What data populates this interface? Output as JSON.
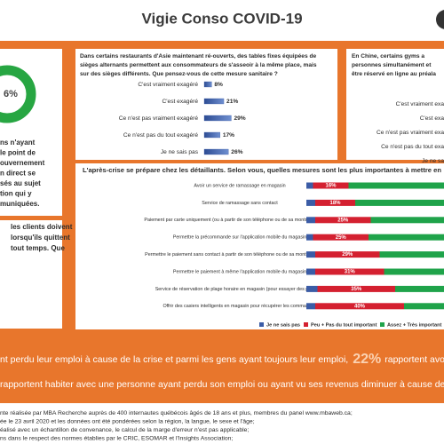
{
  "title": "Vigie Conso COVID-19",
  "left_panel": {
    "donut_label": "6%",
    "lines": [
      "ns n'ayant",
      "le point de",
      "ouvernement",
      "n direct se",
      "sés au sujet",
      "tion qui y",
      "muniquées."
    ]
  },
  "left_panel_2": {
    "lines": [
      "les clients doivent",
      "lorsqu'ils quittent",
      "tout temps. Que"
    ]
  },
  "middle_chart": {
    "type": "bar",
    "question_lines": [
      "Dans certains restaurants d'Asie maintenant ré-ouverts, des tables fixes équipées de",
      "sièges alternants permettent aux consommateurs de s'asseoir à la même place, mais",
      "sur des sièges différents. Que pensez-vous de cette mesure sanitaire ?"
    ],
    "categories": [
      "C'est vraiment exagéré",
      "C'est exagéré",
      "Ce n'est pas vraiment exagéré",
      "Ce n'est pas du tout exagéré",
      "Je ne sais pas"
    ],
    "values": [
      8,
      21,
      29,
      17,
      26
    ],
    "value_labels": [
      "8%",
      "21%",
      "29%",
      "17%",
      "26%"
    ],
    "color": "#3b5ca6"
  },
  "right_panel": {
    "lines": [
      "En Chine, certains gyms a",
      "personnes simultanément et",
      "être réservé en ligne au préala"
    ],
    "categories": [
      "C'est vraiment exa",
      "C'est exa",
      "Ce n'est pas vraiment exa",
      "Ce n'est pas du tout exa",
      "Je ne sa"
    ]
  },
  "retail_chart": {
    "type": "stacked-bar",
    "title": "L'après-crise se prépare chez les détaillants. Selon vous, quelles mesures sont les plus importantes à mettre en",
    "categories": [
      "Avoir un service de ramassage en magasin",
      "Service de ramassage sans contact",
      "Paiement par carte uniquement (ou à partir de son téléphone ou de sa montre intelligente)",
      "Permettre la précommande sur l'application mobile du magasin",
      "Permettre le paiement sans contact à partir de son téléphone ou de sa montre intelligente",
      "Permettre le paiement à même l'application mobile du magasin",
      "Service de réservation de plage horaire en magasin (pour essayer des produits)",
      "Offrir des casiers intelligents en magasin pour récupérer les commandes"
    ],
    "series": [
      {
        "name": "Je ne sais pas",
        "color": "#3b5ca6",
        "values": [
          3,
          4,
          4,
          3,
          4,
          4,
          5,
          4
        ]
      },
      {
        "name": "Peu + Pas du tout important",
        "color": "#d42030",
        "values": [
          16,
          18,
          25,
          25,
          29,
          31,
          35,
          40
        ],
        "value_labels": [
          "16%",
          "18%",
          "25%",
          "25%",
          "29%",
          "31%",
          "35%",
          "40%"
        ]
      },
      {
        "name": "Assez + Très important",
        "color": "#1fa34a",
        "values": [
          81,
          78,
          71,
          72,
          67,
          65,
          60,
          56
        ]
      }
    ]
  },
  "highlights": {
    "line1_before": "nt perdu leur emploi à cause de la crise et parmi les gens ayant toujours leur emploi,",
    "line1_figure": "22%",
    "line1_after": "rapportent avoir subi une",
    "line2": "rapportent habiter avec une personne ayant perdu son emploi ou ayant vu ses revenus diminuer à cause de la crise, c"
  },
  "footer": {
    "lines": [
      "nte réalisée par MBA Recherche auprès de 400 internautes québécois âgés de 18 ans et plus, membres du panel www.mbaweb.ca;",
      "ée le 23 avril 2020 et les données ont été pondérées selon la région, la langue, le sexe et l'âge;",
      "éalisé avec un échantillon de convenance, le calcul de la marge d'erreur n'est pas applicable;",
      "ns dans le respect des normes établies par le CRIC, ESOMAR et l'Insights Association;"
    ]
  }
}
